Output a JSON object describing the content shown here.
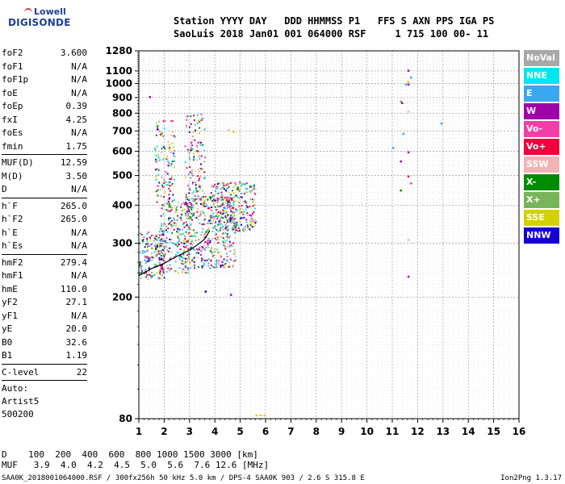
{
  "logo": {
    "line1": "Lowell",
    "line2": "DIGISONDE"
  },
  "header": {
    "line1": "Station YYYY DAY   DDD HHMMSS P1   FFS S AXN PPS IGA PS",
    "line2": "SaoLuis 2018 Jan01 001 064000 RSF     1 715 100 00- 11"
  },
  "params": {
    "group1": [
      {
        "label": "foF2",
        "value": "3.600"
      },
      {
        "label": "foF1",
        "value": "N/A"
      },
      {
        "label": "foF1p",
        "value": "N/A"
      },
      {
        "label": "foE",
        "value": "N/A"
      },
      {
        "label": "foEp",
        "value": "0.39"
      },
      {
        "label": "fxI",
        "value": "4.25"
      },
      {
        "label": "foEs",
        "value": "N/A"
      },
      {
        "label": "fmin",
        "value": "1.75"
      }
    ],
    "group2": [
      {
        "label": "MUF(D)",
        "value": "12.59"
      },
      {
        "label": "M(D)",
        "value": "3.50"
      },
      {
        "label": "D",
        "value": "N/A"
      }
    ],
    "group3": [
      {
        "label": "h`F",
        "value": "265.0"
      },
      {
        "label": "h`F2",
        "value": "265.0"
      },
      {
        "label": "h`E",
        "value": "N/A"
      },
      {
        "label": "h`Es",
        "value": "N/A"
      }
    ],
    "group4": [
      {
        "label": "hmF2",
        "value": "279.4"
      },
      {
        "label": "hmF1",
        "value": "N/A"
      },
      {
        "label": "hmE",
        "value": "110.0"
      },
      {
        "label": "yF2",
        "value": "27.1"
      },
      {
        "label": "yF1",
        "value": "N/A"
      },
      {
        "label": "yE",
        "value": "20.0"
      },
      {
        "label": "B0",
        "value": "32.6"
      },
      {
        "label": "B1",
        "value": "1.19"
      }
    ],
    "group5": [
      {
        "label": "C-level",
        "value": "22"
      }
    ],
    "auto_lines": [
      "Auto:",
      "Artist5",
      "500200"
    ]
  },
  "legend": [
    {
      "label": "NoVal",
      "color": "#a8a8a8"
    },
    {
      "label": "NNE",
      "color": "#00e6f0"
    },
    {
      "label": "E",
      "color": "#3aa8f0"
    },
    {
      "label": "W",
      "color": "#a000a8"
    },
    {
      "label": "Vo-",
      "color": "#f040a8"
    },
    {
      "label": "Vo+",
      "color": "#f0003c"
    },
    {
      "label": "SSW",
      "color": "#f0b4b4"
    },
    {
      "label": "X-",
      "color": "#008c00"
    },
    {
      "label": "X+",
      "color": "#78b45a"
    },
    {
      "label": "SSE",
      "color": "#d2d200"
    },
    {
      "label": "NNW",
      "color": "#1400d2"
    }
  ],
  "chart_data": {
    "type": "scatter",
    "xlim": [
      1,
      16
    ],
    "ylim": [
      80,
      1280
    ],
    "x_ticks": [
      1,
      2,
      3,
      4,
      5,
      6,
      7,
      8,
      9,
      10,
      11,
      12,
      13,
      14,
      15,
      16
    ],
    "y_ticks": [
      80,
      200,
      300,
      400,
      500,
      600,
      700,
      800,
      900,
      1000,
      1100,
      1280
    ],
    "grid": true,
    "scale_y": "log",
    "legend_position": "right",
    "trace": [
      [
        1.0,
        235
      ],
      [
        1.5,
        248
      ],
      [
        2.0,
        258
      ],
      [
        2.5,
        272
      ],
      [
        3.0,
        285
      ],
      [
        3.3,
        296
      ],
      [
        3.6,
        310
      ],
      [
        3.8,
        330
      ]
    ],
    "clusters": [
      {
        "x": [
          1.0,
          2.0
        ],
        "y": [
          230,
          330
        ],
        "n": 180
      },
      {
        "x": [
          1.8,
          3.0
        ],
        "y": [
          240,
          420
        ],
        "n": 220
      },
      {
        "x": [
          2.8,
          4.8
        ],
        "y": [
          250,
          430
        ],
        "n": 420
      },
      {
        "x": [
          3.8,
          5.6
        ],
        "y": [
          330,
          480
        ],
        "n": 260
      },
      {
        "x": [
          1.6,
          2.4
        ],
        "y": [
          400,
          760
        ],
        "n": 120
      },
      {
        "x": [
          2.8,
          3.6
        ],
        "y": [
          400,
          800
        ],
        "n": 140
      }
    ],
    "points": [
      [
        1.4,
        910,
        "W"
      ],
      [
        11.6,
        1110,
        "W"
      ],
      [
        11.6,
        1000,
        "W"
      ],
      [
        11.7,
        1055,
        "E"
      ],
      [
        11.5,
        1000,
        "E"
      ],
      [
        11.6,
        1020,
        "SSE"
      ],
      [
        11.3,
        880,
        "X+"
      ],
      [
        11.35,
        870,
        "W"
      ],
      [
        11.6,
        815,
        "SSW"
      ],
      [
        12.9,
        745,
        "E"
      ],
      [
        11.4,
        690,
        "E"
      ],
      [
        11.0,
        620,
        "E"
      ],
      [
        11.6,
        600,
        "W"
      ],
      [
        11.3,
        560,
        "W"
      ],
      [
        11.6,
        500,
        "Vo+"
      ],
      [
        11.7,
        475,
        "Vo-"
      ],
      [
        11.3,
        450,
        "X-"
      ],
      [
        11.6,
        310,
        "SSW"
      ],
      [
        11.6,
        235,
        "W"
      ],
      [
        4.6,
        205,
        "W"
      ],
      [
        3.6,
        210,
        "NNW"
      ],
      [
        4.7,
        700,
        "SSE"
      ],
      [
        4.5,
        710,
        "SSW"
      ]
    ],
    "sse_line": {
      "x": [
        5.6,
        6.0
      ],
      "y": 82
    }
  },
  "footer": {
    "d_row": "D    100  200  400  600  800 1000 1500 3000 [km]",
    "muf_row": "MUF   3.9  4.0  4.2  4.5  5.0  5.6  7.6 12.6 [MHz]",
    "file_line": "SAA0K_2018001064000.RSF / 300fx256h 50 kHz 5.0 km / DPS-4 SAA0K 903 / 2.6 S 315.8 E",
    "version": "Ion2Png 1.3.17"
  }
}
